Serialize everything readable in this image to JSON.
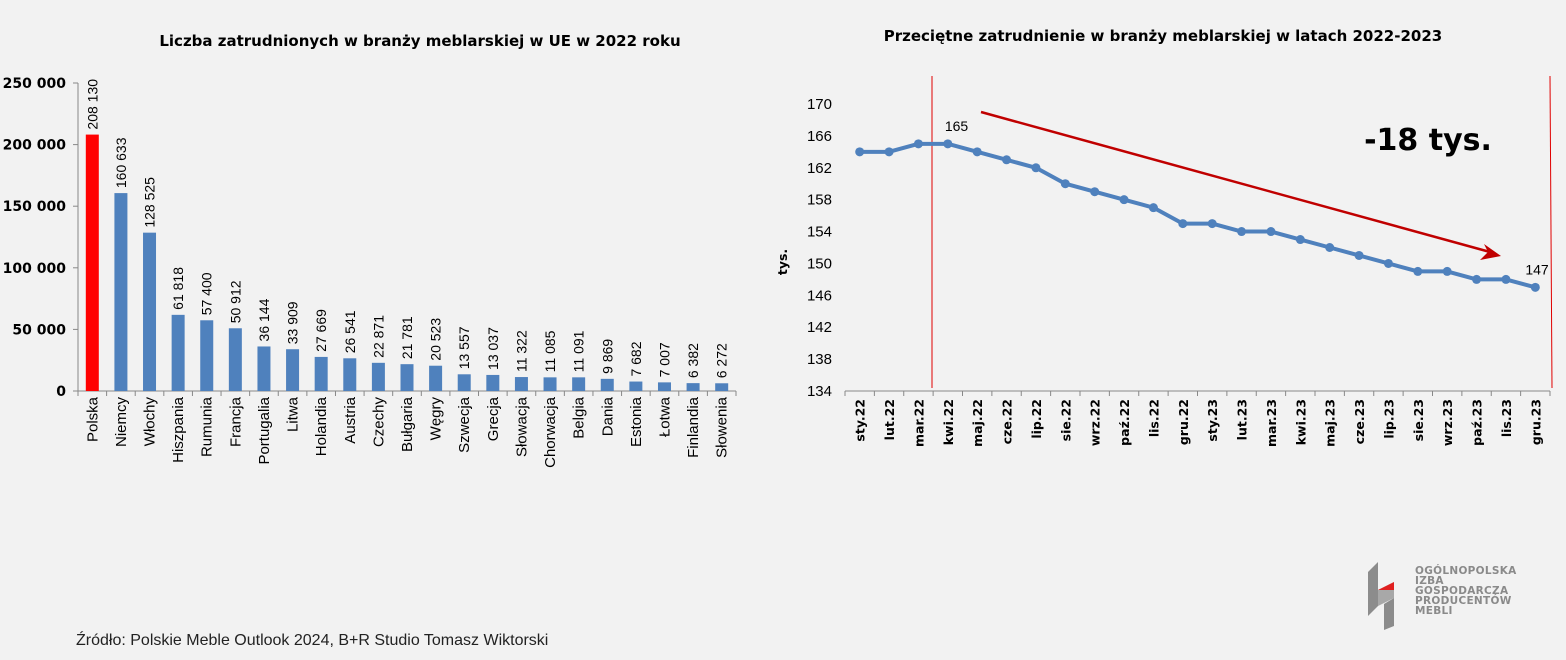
{
  "chart_data": [
    {
      "type": "bar",
      "title": "Liczba zatrudnionych w branży meblarskiej w UE w 2022 roku",
      "categories": [
        "Polska",
        "Niemcy",
        "Włochy",
        "Hiszpania",
        "Rumunia",
        "Francja",
        "Portugalia",
        "Litwa",
        "Holandia",
        "Austria",
        "Czechy",
        "Bułgaria",
        "Węgry",
        "Szwecja",
        "Grecja",
        "Słowacja",
        "Chorwacja",
        "Belgia",
        "Dania",
        "Estonia",
        "Łotwa",
        "Finlandia",
        "Słowenia"
      ],
      "values": [
        208130,
        160633,
        128525,
        61818,
        57400,
        50912,
        36144,
        33909,
        27669,
        26541,
        22871,
        21781,
        20523,
        13557,
        13037,
        11322,
        11085,
        11091,
        9869,
        7682,
        7007,
        6382,
        6272
      ],
      "value_labels": [
        "208 130",
        "160 633",
        "128 525",
        "61 818",
        "57 400",
        "50 912",
        "36 144",
        "33 909",
        "27 669",
        "26 541",
        "22 871",
        "21 781",
        "20 523",
        "13 557",
        "13 037",
        "11 322",
        "11 085",
        "11 091",
        "9 869",
        "7 682",
        "7 007",
        "6 382",
        "6 272"
      ],
      "ylim": [
        0,
        250000
      ],
      "yticks": [
        0,
        50000,
        100000,
        150000,
        200000,
        250000
      ],
      "ytick_labels": [
        "0",
        "50 000",
        "100 000",
        "150 000",
        "200 000",
        "250 000"
      ],
      "colors": {
        "default": "#4f81bd",
        "highlight": "#ff0000"
      },
      "highlight_index": 0
    },
    {
      "type": "line",
      "title": "Przeciętne zatrudnienie w branży meblarskiej w latach 2022-2023",
      "ylabel": "tys.",
      "categories": [
        "sty.22",
        "lut.22",
        "mar.22",
        "kwi.22",
        "maj.22",
        "cze.22",
        "lip.22",
        "sie.22",
        "wrz.22",
        "paź.22",
        "lis.22",
        "gru.22",
        "sty.23",
        "lut.23",
        "mar.23",
        "kwi.23",
        "maj.23",
        "cze.23",
        "lip.23",
        "sie.23",
        "wrz.23",
        "paź.23",
        "lis.23",
        "gru.23"
      ],
      "values": [
        164,
        164,
        165,
        165,
        164,
        163,
        162,
        160,
        159,
        158,
        157,
        155,
        155,
        154,
        154,
        153,
        152,
        151,
        150,
        149,
        149,
        148,
        148,
        147
      ],
      "ylim": [
        134,
        170
      ],
      "yticks": [
        134,
        138,
        142,
        146,
        150,
        154,
        158,
        162,
        166,
        170
      ],
      "data_labels": [
        {
          "index": 3,
          "text": "165"
        },
        {
          "index": 23,
          "text": "147"
        }
      ],
      "annotation": "-18 tys.",
      "colors": {
        "line": "#4f81bd",
        "trend": "#c00000",
        "marker_lines": "#e00000"
      }
    }
  ],
  "footer": {
    "source": "Źródło: Polskie Meble Outlook 2024, B+R Studio Tomasz Wiktorski"
  },
  "logo": {
    "lines": [
      "OGÓLNOPOLSKA",
      "IZBA",
      "GOSPODARCZA",
      "PRODUCENTÓW",
      "MEBLI"
    ]
  }
}
